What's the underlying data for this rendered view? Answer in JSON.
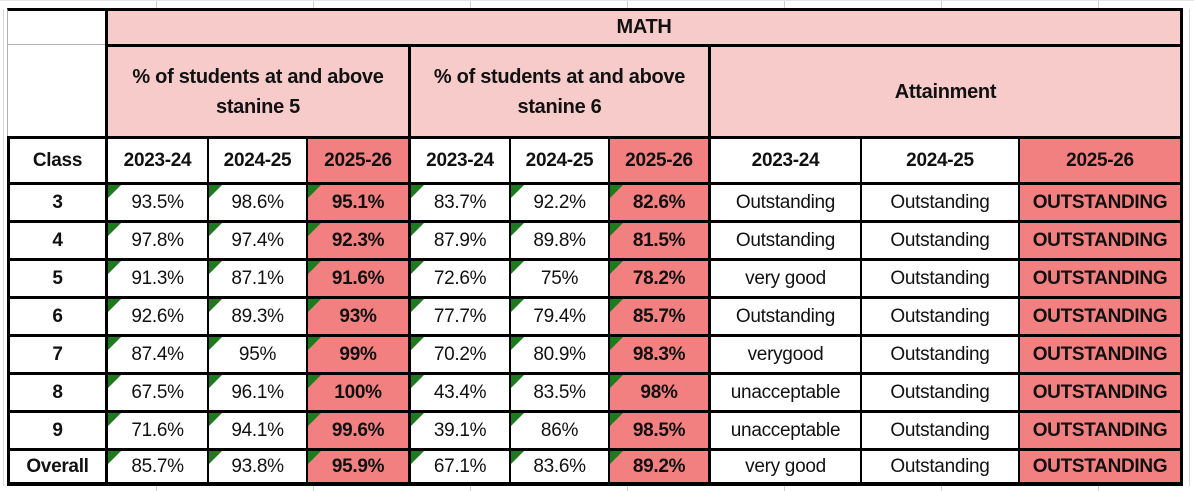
{
  "sheet": {
    "title": "MATH",
    "class_column_header": "Class",
    "group_headers": [
      "% of students at and above stanine 5",
      "% of students at and above stanine 6",
      "Attainment"
    ],
    "year_headers": [
      "2023-24",
      "2024-25",
      "2025-26"
    ],
    "rows": [
      {
        "class": "3",
        "s5": [
          "93.5%",
          "98.6%",
          "95.1%"
        ],
        "s6": [
          "83.7%",
          "92.2%",
          "82.6%"
        ],
        "att": [
          "Outstanding",
          "Outstanding",
          "OUTSTANDING"
        ]
      },
      {
        "class": "4",
        "s5": [
          "97.8%",
          "97.4%",
          "92.3%"
        ],
        "s6": [
          "87.9%",
          "89.8%",
          "81.5%"
        ],
        "att": [
          "Outstanding",
          "Outstanding",
          "OUTSTANDING"
        ]
      },
      {
        "class": "5",
        "s5": [
          "91.3%",
          "87.1%",
          "91.6%"
        ],
        "s6": [
          "72.6%",
          "75%",
          "78.2%"
        ],
        "att": [
          "very good",
          "Outstanding",
          "OUTSTANDING"
        ]
      },
      {
        "class": "6",
        "s5": [
          "92.6%",
          "89.3%",
          "93%"
        ],
        "s6": [
          "77.7%",
          "79.4%",
          "85.7%"
        ],
        "att": [
          "Outstanding",
          "Outstanding",
          "OUTSTANDING"
        ]
      },
      {
        "class": "7",
        "s5": [
          "87.4%",
          "95%",
          "99%"
        ],
        "s6": [
          "70.2%",
          "80.9%",
          "98.3%"
        ],
        "att": [
          "verygood",
          "Outstanding",
          "OUTSTANDING"
        ]
      },
      {
        "class": "8",
        "s5": [
          "67.5%",
          "96.1%",
          "100%"
        ],
        "s6": [
          "43.4%",
          "83.5%",
          "98%"
        ],
        "att": [
          "unacceptable",
          "Outstanding",
          "OUTSTANDING"
        ]
      },
      {
        "class": "9",
        "s5": [
          "71.6%",
          "94.1%",
          "99.6%"
        ],
        "s6": [
          "39.1%",
          "86%",
          "98.5%"
        ],
        "att": [
          "unacceptable",
          "Outstanding",
          "OUTSTANDING"
        ]
      },
      {
        "class": "Overall",
        "s5": [
          "85.7%",
          "93.8%",
          "95.9%"
        ],
        "s6": [
          "67.1%",
          "83.6%",
          "89.2%"
        ],
        "att": [
          "very good",
          "Outstanding",
          "OUTSTANDING"
        ]
      }
    ],
    "colors": {
      "header_pink": "#F8CBCB",
      "highlight_salmon": "#F38080",
      "flag_green": "#1E7A1E",
      "border_black": "#000000"
    },
    "icons": {
      "flag_triangle": "excel-green-corner-flag"
    }
  }
}
